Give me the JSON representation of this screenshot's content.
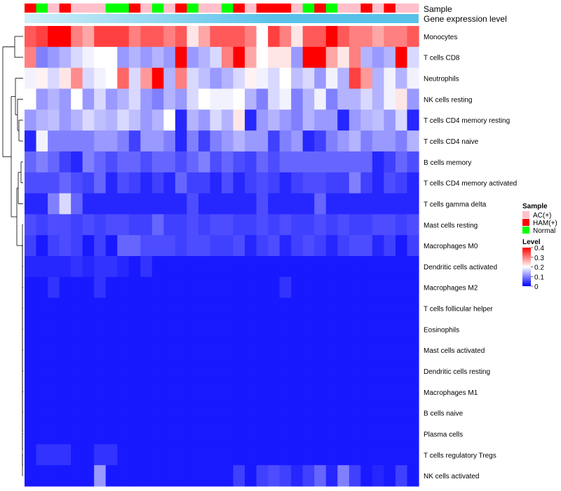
{
  "chart_data": {
    "type": "heatmap",
    "annotation_rows": [
      "Sample",
      "Gene expression level"
    ],
    "sample_groups": [
      "HAM(+)",
      "Normal",
      "AC(+)",
      "HAM(+)",
      "AC(+)",
      "AC(+)",
      "AC(+)",
      "Normal",
      "Normal",
      "HAM(+)",
      "AC(+)",
      "Normal",
      "AC(+)",
      "HAM(+)",
      "Normal",
      "AC(+)",
      "AC(+)",
      "Normal",
      "HAM(+)",
      "AC(+)",
      "HAM(+)",
      "HAM(+)",
      "HAM(+)",
      "AC(+)",
      "Normal",
      "HAM(+)",
      "Normal",
      "AC(+)",
      "AC(+)",
      "HAM(+)",
      "AC(+)",
      "HAM(+)",
      "AC(+)",
      "AC(+)"
    ],
    "rows": [
      "Monocytes",
      "T cells CD8",
      "Neutrophils",
      "NK cells resting",
      "T cells CD4 memory resting",
      "T cells CD4 naive",
      "B cells memory",
      "T cells CD4 memory activated",
      "T cells gamma delta",
      "Mast cells resting",
      "Macrophages M0",
      "Dendritic cells activated",
      "Macrophages M2",
      "T cells follicular helper",
      "Eosinophils",
      "Mast cells activated",
      "Dendritic cells resting",
      "Macrophages M1",
      "B cells naive",
      "Plasma cells",
      "T cells regulatory  Tregs",
      "NK cells activated"
    ],
    "values": [
      [
        0.33,
        0.35,
        0.4,
        0.4,
        0.3,
        0.27,
        0.35,
        0.35,
        0.35,
        0.3,
        0.33,
        0.33,
        0.3,
        0.33,
        0.22,
        0.27,
        0.33,
        0.33,
        0.33,
        0.3,
        0.2,
        0.35,
        0.3,
        0.22,
        0.33,
        0.33,
        0.4,
        0.33,
        0.3,
        0.3,
        0.27,
        0.3,
        0.3,
        0.33
      ],
      [
        0.3,
        0.1,
        0.12,
        0.14,
        0.17,
        0.19,
        0.2,
        0.2,
        0.12,
        0.14,
        0.12,
        0.14,
        0.12,
        0.4,
        0.12,
        0.14,
        0.17,
        0.3,
        0.4,
        0.27,
        0.2,
        0.22,
        0.22,
        0.12,
        0.4,
        0.4,
        0.27,
        0.22,
        0.3,
        0.14,
        0.12,
        0.14,
        0.4,
        0.17
      ],
      [
        0.19,
        0.21,
        0.17,
        0.22,
        0.29,
        0.17,
        0.19,
        0.2,
        0.32,
        0.17,
        0.28,
        0.4,
        0.14,
        0.3,
        0.17,
        0.15,
        0.12,
        0.14,
        0.17,
        0.21,
        0.19,
        0.17,
        0.2,
        0.15,
        0.17,
        0.12,
        0.19,
        0.14,
        0.35,
        0.28,
        0.14,
        0.19,
        0.14,
        0.19
      ],
      [
        0.2,
        0.12,
        0.14,
        0.12,
        0.2,
        0.12,
        0.17,
        0.12,
        0.14,
        0.17,
        0.12,
        0.1,
        0.14,
        0.12,
        0.17,
        0.2,
        0.19,
        0.19,
        0.2,
        0.14,
        0.1,
        0.17,
        0.19,
        0.1,
        0.14,
        0.19,
        0.1,
        0.14,
        0.14,
        0.17,
        0.14,
        0.19,
        0.22,
        0.12
      ],
      [
        0.12,
        0.14,
        0.15,
        0.12,
        0.14,
        0.17,
        0.15,
        0.14,
        0.17,
        0.15,
        0.12,
        0.14,
        0.2,
        0.03,
        0.14,
        0.12,
        0.17,
        0.14,
        0.22,
        0.03,
        0.12,
        0.14,
        0.12,
        0.1,
        0.14,
        0.12,
        0.12,
        0.03,
        0.12,
        0.14,
        0.15,
        0.12,
        0.17,
        0.03
      ],
      [
        0.03,
        0.19,
        0.1,
        0.1,
        0.1,
        0.1,
        0.12,
        0.12,
        0.1,
        0.05,
        0.12,
        0.12,
        0.1,
        0.03,
        0.1,
        0.05,
        0.1,
        0.12,
        0.14,
        0.12,
        0.12,
        0.05,
        0.1,
        0.12,
        0.03,
        0.05,
        0.1,
        0.12,
        0.14,
        0.1,
        0.12,
        0.12,
        0.1,
        0.14
      ],
      [
        0.08,
        0.1,
        0.08,
        0.05,
        0.03,
        0.1,
        0.08,
        0.06,
        0.08,
        0.08,
        0.06,
        0.08,
        0.08,
        0.06,
        0.08,
        0.1,
        0.06,
        0.08,
        0.06,
        0.05,
        0.08,
        0.06,
        0.08,
        0.08,
        0.08,
        0.08,
        0.08,
        0.08,
        0.08,
        0.08,
        0.03,
        0.05,
        0.08,
        0.06
      ],
      [
        0.06,
        0.06,
        0.06,
        0.08,
        0.06,
        0.05,
        0.08,
        0.03,
        0.06,
        0.05,
        0.03,
        0.05,
        0.03,
        0.08,
        0.05,
        0.05,
        0.03,
        0.06,
        0.03,
        0.05,
        0.06,
        0.05,
        0.03,
        0.05,
        0.06,
        0.06,
        0.05,
        0.05,
        0.1,
        0.05,
        0.03,
        0.06,
        0.05,
        0.03
      ],
      [
        0.03,
        0.03,
        0.1,
        0.17,
        0.08,
        0.03,
        0.03,
        0.03,
        0.03,
        0.03,
        0.03,
        0.03,
        0.03,
        0.03,
        0.06,
        0.03,
        0.03,
        0.03,
        0.03,
        0.03,
        0.06,
        0.03,
        0.03,
        0.03,
        0.03,
        0.08,
        0.03,
        0.03,
        0.03,
        0.03,
        0.03,
        0.03,
        0.03,
        0.03
      ],
      [
        0.06,
        0.05,
        0.06,
        0.06,
        0.05,
        0.06,
        0.05,
        0.06,
        0.06,
        0.05,
        0.05,
        0.08,
        0.05,
        0.05,
        0.06,
        0.05,
        0.06,
        0.06,
        0.05,
        0.05,
        0.06,
        0.05,
        0.06,
        0.05,
        0.05,
        0.06,
        0.05,
        0.06,
        0.05,
        0.05,
        0.06,
        0.06,
        0.05,
        0.06
      ],
      [
        0.05,
        0.02,
        0.05,
        0.06,
        0.05,
        0.02,
        0.05,
        0.02,
        0.08,
        0.08,
        0.06,
        0.06,
        0.06,
        0.05,
        0.06,
        0.06,
        0.05,
        0.05,
        0.06,
        0.03,
        0.05,
        0.06,
        0.03,
        0.05,
        0.06,
        0.05,
        0.03,
        0.05,
        0.06,
        0.06,
        0.03,
        0.05,
        0.02,
        0.05
      ],
      [
        0.03,
        0.03,
        0.03,
        0.03,
        0.04,
        0.03,
        0.04,
        0.04,
        0.03,
        0.02,
        0.04,
        0.02,
        0.02,
        0.02,
        0.02,
        0.02,
        0.02,
        0.02,
        0.02,
        0.02,
        0.02,
        0.02,
        0.02,
        0.02,
        0.02,
        0.02,
        0.02,
        0.02,
        0.02,
        0.02,
        0.02,
        0.02,
        0.02,
        0.02
      ],
      [
        0.02,
        0.02,
        0.04,
        0.02,
        0.02,
        0.02,
        0.04,
        0.02,
        0.02,
        0.02,
        0.02,
        0.02,
        0.02,
        0.02,
        0.02,
        0.02,
        0.02,
        0.02,
        0.02,
        0.02,
        0.02,
        0.02,
        0.04,
        0.02,
        0.02,
        0.02,
        0.02,
        0.02,
        0.02,
        0.02,
        0.02,
        0.02,
        0.02,
        0.02
      ],
      [
        0.02,
        0.02,
        0.02,
        0.02,
        0.02,
        0.02,
        0.02,
        0.02,
        0.02,
        0.02,
        0.02,
        0.02,
        0.02,
        0.02,
        0.02,
        0.02,
        0.02,
        0.02,
        0.02,
        0.02,
        0.02,
        0.02,
        0.02,
        0.02,
        0.02,
        0.02,
        0.02,
        0.02,
        0.02,
        0.02,
        0.02,
        0.02,
        0.02,
        0.02
      ],
      [
        0.02,
        0.02,
        0.02,
        0.02,
        0.02,
        0.02,
        0.02,
        0.02,
        0.02,
        0.02,
        0.02,
        0.02,
        0.02,
        0.02,
        0.02,
        0.02,
        0.02,
        0.02,
        0.02,
        0.02,
        0.02,
        0.02,
        0.02,
        0.02,
        0.02,
        0.02,
        0.02,
        0.02,
        0.02,
        0.02,
        0.02,
        0.02,
        0.02,
        0.02
      ],
      [
        0.02,
        0.02,
        0.02,
        0.02,
        0.02,
        0.02,
        0.02,
        0.02,
        0.02,
        0.02,
        0.02,
        0.02,
        0.02,
        0.02,
        0.02,
        0.02,
        0.02,
        0.02,
        0.02,
        0.02,
        0.02,
        0.02,
        0.02,
        0.02,
        0.02,
        0.02,
        0.02,
        0.02,
        0.02,
        0.02,
        0.02,
        0.02,
        0.02,
        0.02
      ],
      [
        0.02,
        0.02,
        0.02,
        0.02,
        0.02,
        0.02,
        0.02,
        0.02,
        0.02,
        0.02,
        0.02,
        0.02,
        0.02,
        0.02,
        0.02,
        0.02,
        0.02,
        0.02,
        0.02,
        0.02,
        0.02,
        0.02,
        0.02,
        0.02,
        0.02,
        0.02,
        0.02,
        0.02,
        0.02,
        0.02,
        0.02,
        0.02,
        0.02,
        0.02
      ],
      [
        0.02,
        0.02,
        0.02,
        0.02,
        0.02,
        0.02,
        0.02,
        0.02,
        0.02,
        0.02,
        0.02,
        0.02,
        0.02,
        0.02,
        0.02,
        0.02,
        0.02,
        0.02,
        0.02,
        0.02,
        0.02,
        0.02,
        0.02,
        0.02,
        0.02,
        0.02,
        0.02,
        0.02,
        0.02,
        0.02,
        0.02,
        0.02,
        0.02,
        0.02
      ],
      [
        0.02,
        0.02,
        0.02,
        0.02,
        0.02,
        0.02,
        0.02,
        0.02,
        0.02,
        0.02,
        0.02,
        0.02,
        0.02,
        0.02,
        0.02,
        0.02,
        0.02,
        0.02,
        0.02,
        0.02,
        0.02,
        0.02,
        0.02,
        0.02,
        0.02,
        0.02,
        0.02,
        0.02,
        0.02,
        0.02,
        0.02,
        0.02,
        0.02,
        0.02
      ],
      [
        0.02,
        0.02,
        0.02,
        0.02,
        0.02,
        0.02,
        0.02,
        0.02,
        0.02,
        0.02,
        0.02,
        0.02,
        0.02,
        0.02,
        0.02,
        0.02,
        0.02,
        0.02,
        0.02,
        0.02,
        0.02,
        0.02,
        0.02,
        0.02,
        0.02,
        0.02,
        0.02,
        0.02,
        0.02,
        0.02,
        0.02,
        0.02,
        0.02,
        0.02
      ],
      [
        0.02,
        0.04,
        0.04,
        0.04,
        0.02,
        0.02,
        0.04,
        0.04,
        0.02,
        0.02,
        0.02,
        0.02,
        0.02,
        0.02,
        0.02,
        0.02,
        0.02,
        0.02,
        0.02,
        0.02,
        0.02,
        0.02,
        0.02,
        0.02,
        0.02,
        0.02,
        0.02,
        0.02,
        0.02,
        0.02,
        0.02,
        0.02,
        0.02,
        0.02
      ],
      [
        0.02,
        0.02,
        0.02,
        0.02,
        0.02,
        0.02,
        0.12,
        0.02,
        0.02,
        0.02,
        0.02,
        0.02,
        0.02,
        0.02,
        0.02,
        0.02,
        0.02,
        0.02,
        0.05,
        0.02,
        0.05,
        0.06,
        0.05,
        0.03,
        0.05,
        0.08,
        0.03,
        0.1,
        0.05,
        0.02,
        0.03,
        0.02,
        0.05,
        0.02
      ]
    ],
    "legend": {
      "sample_title": "Sample",
      "sample_entries": [
        {
          "label": "AC(+)",
          "color": "#ffc0cb"
        },
        {
          "label": "HAM(+)",
          "color": "#ff0000"
        },
        {
          "label": "Normal",
          "color": "#00ff00"
        }
      ],
      "level_title": "Level",
      "level_ticks": [
        "0.4",
        "0.3",
        "0.2",
        "0.1",
        "0"
      ],
      "level_range": [
        0,
        0.4
      ]
    },
    "colors": {
      "low": "#0000ff",
      "mid": "#ffffff",
      "high": "#ff0000",
      "gene_expression_bar": "#57c1ea",
      "gene_expression_bar_light": "#cfeff8"
    }
  }
}
